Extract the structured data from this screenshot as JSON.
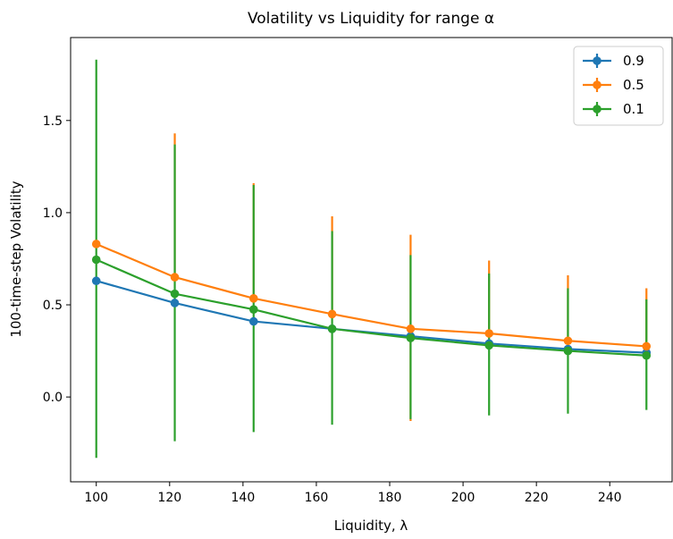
{
  "chart_data": {
    "type": "line",
    "title": "Volatility vs Liquidity for range α",
    "xlabel": "Liquidity, λ",
    "ylabel": "100-time-step Volatility",
    "xlim": [
      93,
      257
    ],
    "ylim": [
      -0.46,
      1.95
    ],
    "xticks": [
      100,
      120,
      140,
      160,
      180,
      200,
      220,
      240
    ],
    "yticks": [
      0.0,
      0.5,
      1.0,
      1.5
    ],
    "ytick_labels": [
      "0.0",
      "0.5",
      "1.0",
      "1.5"
    ],
    "x": [
      100,
      121.4,
      142.9,
      164.3,
      185.7,
      207.1,
      228.6,
      250
    ],
    "legend_position": "top-right",
    "series": [
      {
        "name": "0.9",
        "color": "#1f77b4",
        "values": [
          0.63,
          0.51,
          0.41,
          0.37,
          0.33,
          0.29,
          0.26,
          0.24
        ],
        "err_low": [
          0.63,
          0.51,
          0.41,
          0.37,
          0.33,
          0.29,
          0.26,
          0.24
        ],
        "err_high": [
          0.63,
          0.51,
          0.41,
          0.37,
          0.33,
          0.29,
          0.26,
          0.24
        ]
      },
      {
        "name": "0.5",
        "color": "#ff7f0e",
        "values": [
          0.83,
          0.65,
          0.535,
          0.45,
          0.37,
          0.345,
          0.305,
          0.275
        ],
        "err_low": [
          0.83,
          0.65,
          0.535,
          0.45,
          -0.13,
          0.345,
          0.305,
          0.275
        ],
        "err_high": [
          0.83,
          1.43,
          1.16,
          0.98,
          0.88,
          0.74,
          0.66,
          0.59
        ]
      },
      {
        "name": "0.1",
        "color": "#2ca02c",
        "values": [
          0.745,
          0.56,
          0.475,
          0.37,
          0.32,
          0.28,
          0.25,
          0.225
        ],
        "err_low": [
          -0.33,
          -0.24,
          -0.19,
          -0.15,
          -0.12,
          -0.1,
          -0.09,
          -0.07
        ],
        "err_high": [
          1.83,
          1.37,
          1.15,
          0.9,
          0.77,
          0.67,
          0.59,
          0.53
        ]
      }
    ]
  }
}
